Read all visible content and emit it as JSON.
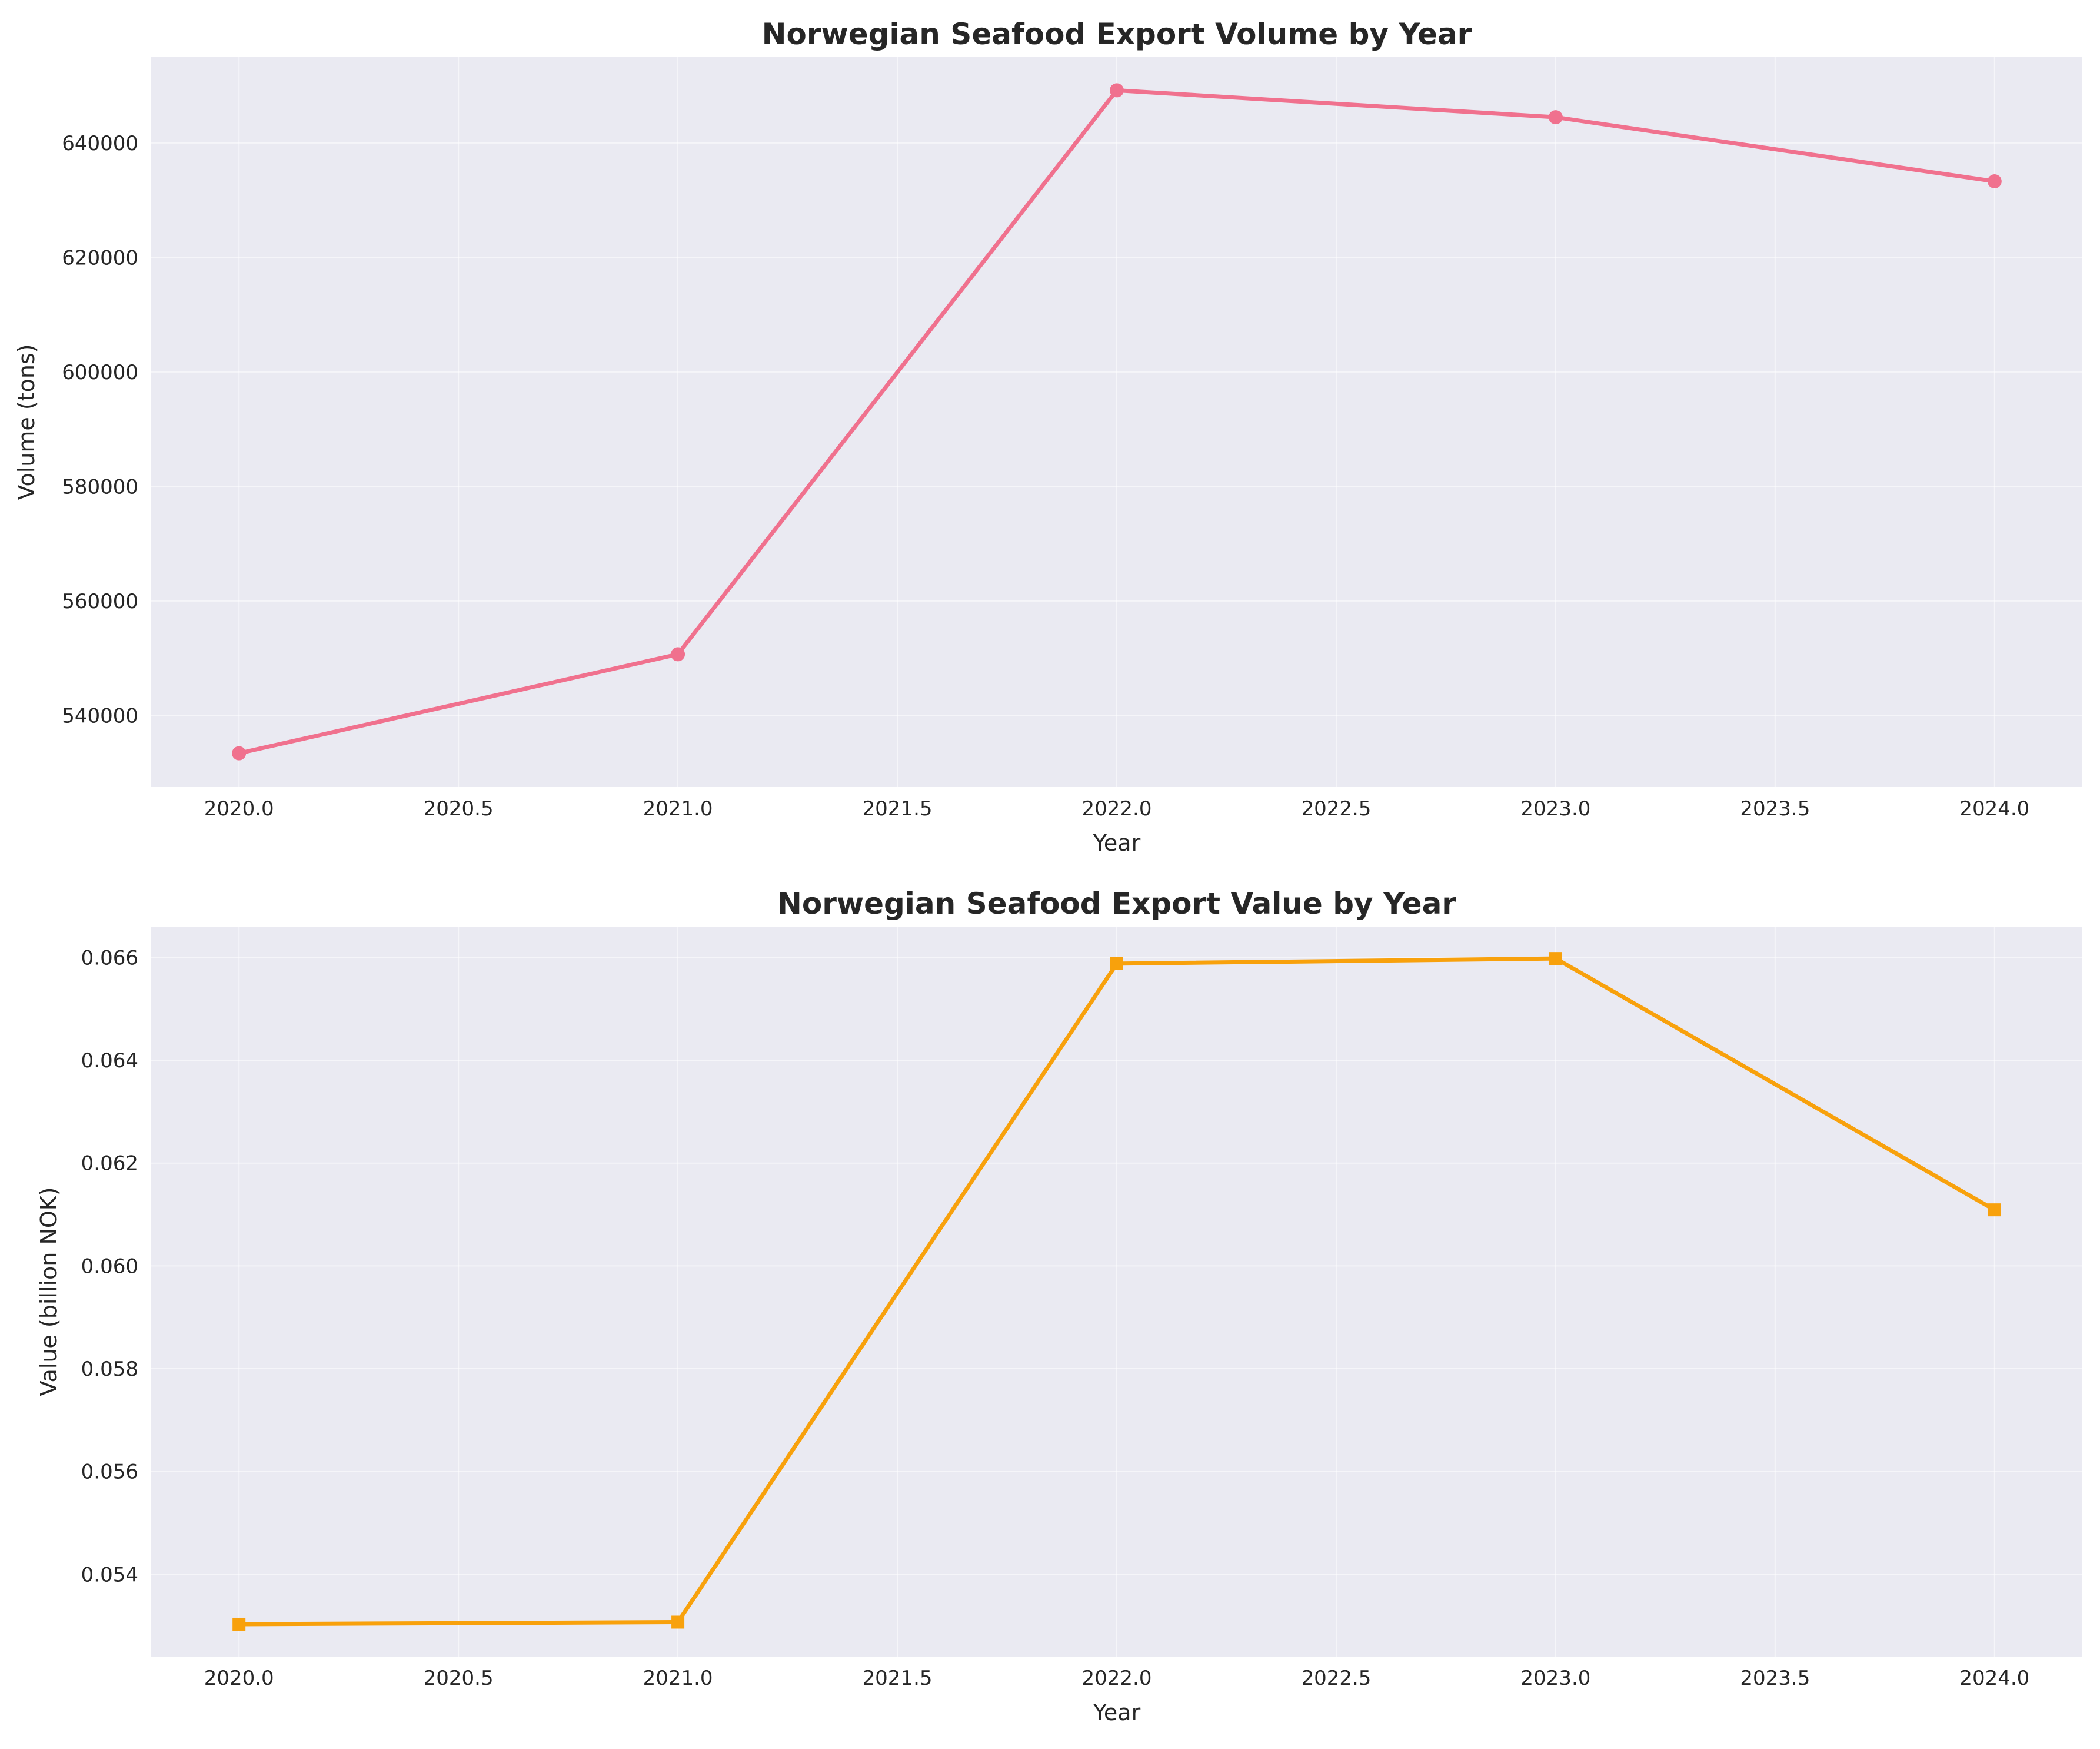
{
  "chart_data": [
    {
      "type": "line",
      "title": "Norwegian Seafood Export Volume by Year",
      "xlabel": "Year",
      "ylabel": "Volume (tons)",
      "x": [
        2020,
        2021,
        2022,
        2023,
        2024
      ],
      "series": [
        {
          "values": [
            533400,
            550700,
            649200,
            644500,
            633300
          ],
          "color": "#f0718e",
          "marker": "circle"
        }
      ],
      "xlim": [
        2019.8,
        2024.2
      ],
      "ylim": [
        527500,
        655000
      ],
      "xticks": [
        2020.0,
        2020.5,
        2021.0,
        2021.5,
        2022.0,
        2022.5,
        2023.0,
        2023.5,
        2024.0
      ],
      "xtick_labels": [
        "2020.0",
        "2020.5",
        "2021.0",
        "2021.5",
        "2022.0",
        "2022.5",
        "2023.0",
        "2023.5",
        "2024.0"
      ],
      "yticks": [
        540000,
        560000,
        580000,
        600000,
        620000,
        640000
      ],
      "ytick_labels": [
        "540000",
        "560000",
        "580000",
        "600000",
        "620000",
        "640000"
      ],
      "grid": true,
      "background": "#eaeaf2"
    },
    {
      "type": "line",
      "title": "Norwegian Seafood Export Value by Year",
      "xlabel": "Year",
      "ylabel": "Value (billion NOK)",
      "x": [
        2020,
        2021,
        2022,
        2023,
        2024
      ],
      "series": [
        {
          "values": [
            0.05303,
            0.05307,
            0.06588,
            0.06598,
            0.06109
          ],
          "color": "#f8a10c",
          "marker": "square"
        }
      ],
      "xlim": [
        2019.8,
        2024.2
      ],
      "ylim": [
        0.0524,
        0.0666
      ],
      "xticks": [
        2020.0,
        2020.5,
        2021.0,
        2021.5,
        2022.0,
        2022.5,
        2023.0,
        2023.5,
        2024.0
      ],
      "xtick_labels": [
        "2020.0",
        "2020.5",
        "2021.0",
        "2021.5",
        "2022.0",
        "2022.5",
        "2023.0",
        "2023.5",
        "2024.0"
      ],
      "yticks": [
        0.054,
        0.056,
        0.058,
        0.06,
        0.062,
        0.064,
        0.066
      ],
      "ytick_labels": [
        "0.054",
        "0.056",
        "0.058",
        "0.060",
        "0.062",
        "0.064",
        "0.066"
      ],
      "grid": true,
      "background": "#eaeaf2"
    }
  ]
}
